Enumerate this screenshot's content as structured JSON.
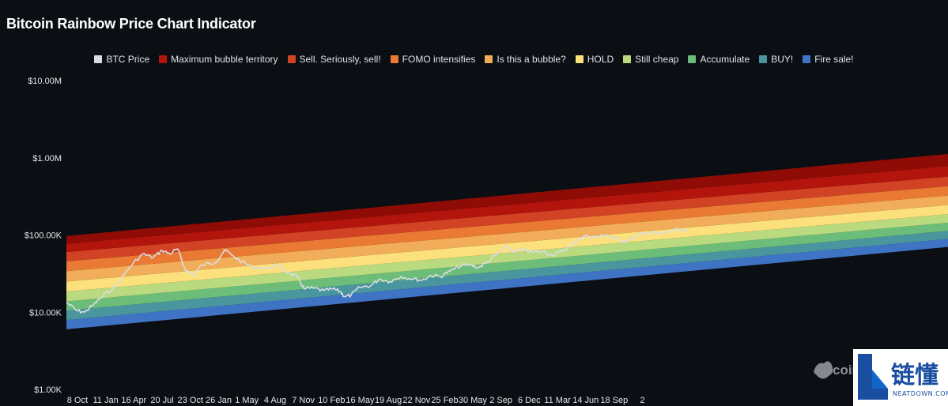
{
  "header": {
    "title": "Bitcoin Rainbow Price Chart Indicator"
  },
  "watermark": {
    "text": "coin"
  },
  "badge": {
    "text": "链懂",
    "sub": "NEATDOWN.COM"
  },
  "chart_data": {
    "type": "area",
    "title": "Bitcoin Rainbow Price Chart Indicator",
    "yscale": "log",
    "ylim": [
      1000,
      10000000
    ],
    "yticks": [
      {
        "value": 10000000,
        "label": "$10.00M"
      },
      {
        "value": 1000000,
        "label": "$1.00M"
      },
      {
        "value": 100000,
        "label": "$100.00K"
      },
      {
        "value": 10000,
        "label": "$10.00K"
      },
      {
        "value": 1000,
        "label": "$1.00K"
      }
    ],
    "xlim": [
      "2017-09-01",
      "2025-10-15"
    ],
    "xticks": [
      {
        "date": "2017-10-08",
        "label": "8 Oct"
      },
      {
        "date": "2018-01-11",
        "label": "11 Jan"
      },
      {
        "date": "2018-04-16",
        "label": "16 Apr"
      },
      {
        "date": "2018-07-20",
        "label": "20 Jul"
      },
      {
        "date": "2018-10-23",
        "label": "23 Oct"
      },
      {
        "date": "2019-01-26",
        "label": "26 Jan"
      },
      {
        "date": "2019-05-01",
        "label": "1 May"
      },
      {
        "date": "2019-08-04",
        "label": "4 Aug"
      },
      {
        "date": "2019-11-07",
        "label": "7 Nov"
      },
      {
        "date": "2020-02-10",
        "label": "10 Feb"
      },
      {
        "date": "2020-05-16",
        "label": "16 May"
      },
      {
        "date": "2020-08-19",
        "label": "19 Aug"
      },
      {
        "date": "2020-11-22",
        "label": "22 Nov"
      },
      {
        "date": "2021-02-25",
        "label": "25 Feb"
      },
      {
        "date": "2021-05-30",
        "label": "30 May"
      },
      {
        "date": "2021-09-02",
        "label": "2 Sep"
      },
      {
        "date": "2021-12-06",
        "label": "6 Dec"
      },
      {
        "date": "2022-03-11",
        "label": "11 Mar"
      },
      {
        "date": "2022-06-14",
        "label": "14 Jun"
      },
      {
        "date": "2022-09-18",
        "label": "18 Sep"
      },
      {
        "date": "2022-12-22",
        "label": "2"
      }
    ],
    "legend": [
      {
        "name": "BTC Price",
        "color": "#d9dde3"
      },
      {
        "name": "Maximum bubble territory",
        "color": "#b3150c"
      },
      {
        "name": "Sell. Seriously, sell!",
        "color": "#d14324"
      },
      {
        "name": "FOMO intensifies",
        "color": "#ea7a33"
      },
      {
        "name": "Is this a bubble?",
        "color": "#f2ad5a"
      },
      {
        "name": "HOLD",
        "color": "#fbe07b"
      },
      {
        "name": "Still cheap",
        "color": "#b9da7e"
      },
      {
        "name": "Accumulate",
        "color": "#6cbd79"
      },
      {
        "name": "BUY!",
        "color": "#4a969e"
      },
      {
        "name": "Fire sale!",
        "color": "#3f73c4"
      }
    ],
    "bands": {
      "x": [
        "2017-09-01",
        "2025-10-15"
      ],
      "boundaries_start": [
        6000,
        7900,
        10500,
        13800,
        18500,
        25000,
        34000,
        45500,
        60000,
        77000,
        97000
      ],
      "boundaries_end": [
        70000,
        89000,
        113000,
        144000,
        186000,
        245000,
        325000,
        430000,
        570000,
        780000,
        1120000
      ],
      "colors": [
        "#3f73c4",
        "#4a969e",
        "#6cbd79",
        "#b9da7e",
        "#fbe07b",
        "#f2ad5a",
        "#ea7a33",
        "#d14324",
        "#b3150c",
        "#8e0b06"
      ]
    },
    "series": [
      {
        "name": "BTC Price",
        "color": "#d9dde3",
        "points": [
          [
            "2017-09-01",
            13500
          ],
          [
            "2017-10-05",
            10500
          ],
          [
            "2017-11-01",
            10000
          ],
          [
            "2017-12-01",
            12500
          ],
          [
            "2018-01-01",
            16000
          ],
          [
            "2018-02-15",
            22000
          ],
          [
            "2018-04-01",
            38000
          ],
          [
            "2018-05-15",
            57000
          ],
          [
            "2018-06-20",
            51000
          ],
          [
            "2018-07-20",
            63000
          ],
          [
            "2018-08-15",
            57000
          ],
          [
            "2018-09-10",
            66000
          ],
          [
            "2018-10-05",
            36000
          ],
          [
            "2018-11-01",
            30000
          ],
          [
            "2018-12-01",
            41000
          ],
          [
            "2019-01-15",
            44000
          ],
          [
            "2019-02-15",
            64000
          ],
          [
            "2019-03-10",
            55000
          ],
          [
            "2019-04-15",
            45000
          ],
          [
            "2019-05-15",
            39000
          ],
          [
            "2019-07-01",
            37000
          ],
          [
            "2019-08-15",
            40000
          ],
          [
            "2019-09-20",
            32000
          ],
          [
            "2019-10-20",
            28000
          ],
          [
            "2019-11-10",
            20000
          ],
          [
            "2019-12-10",
            20500
          ],
          [
            "2020-01-15",
            19000
          ],
          [
            "2020-02-15",
            20000
          ],
          [
            "2020-03-10",
            18500
          ],
          [
            "2020-03-25",
            16000
          ],
          [
            "2020-04-15",
            16500
          ],
          [
            "2020-05-15",
            21000
          ],
          [
            "2020-06-20",
            22000
          ],
          [
            "2020-07-20",
            27000
          ],
          [
            "2020-08-25",
            25000
          ],
          [
            "2020-10-01",
            29000
          ],
          [
            "2020-11-10",
            27000
          ],
          [
            "2020-12-10",
            26000
          ],
          [
            "2021-01-10",
            30000
          ],
          [
            "2021-02-10",
            29000
          ],
          [
            "2021-03-15",
            34000
          ],
          [
            "2021-04-20",
            40000
          ],
          [
            "2021-05-20",
            41000
          ],
          [
            "2021-06-20",
            38000
          ],
          [
            "2021-07-20",
            45000
          ],
          [
            "2021-08-20",
            57000
          ],
          [
            "2021-09-20",
            69000
          ],
          [
            "2021-10-20",
            61000
          ],
          [
            "2021-11-20",
            64000
          ],
          [
            "2021-12-20",
            60000
          ],
          [
            "2022-01-20",
            61000
          ],
          [
            "2022-02-20",
            55000
          ],
          [
            "2022-03-20",
            60000
          ],
          [
            "2022-04-20",
            70000
          ],
          [
            "2022-05-20",
            88000
          ],
          [
            "2022-06-20",
            98000
          ],
          [
            "2022-07-20",
            93000
          ],
          [
            "2022-08-20",
            100000
          ],
          [
            "2022-09-20",
            90000
          ],
          [
            "2022-10-20",
            82000
          ],
          [
            "2022-11-20",
            92000
          ],
          [
            "2022-12-20",
            103000
          ],
          [
            "2023-01-20",
            108000
          ],
          [
            "2023-02-20",
            104000
          ],
          [
            "2023-03-20",
            110000
          ],
          [
            "2023-04-20",
            116000
          ],
          [
            "2023-05-20",
            112000
          ]
        ]
      }
    ]
  }
}
